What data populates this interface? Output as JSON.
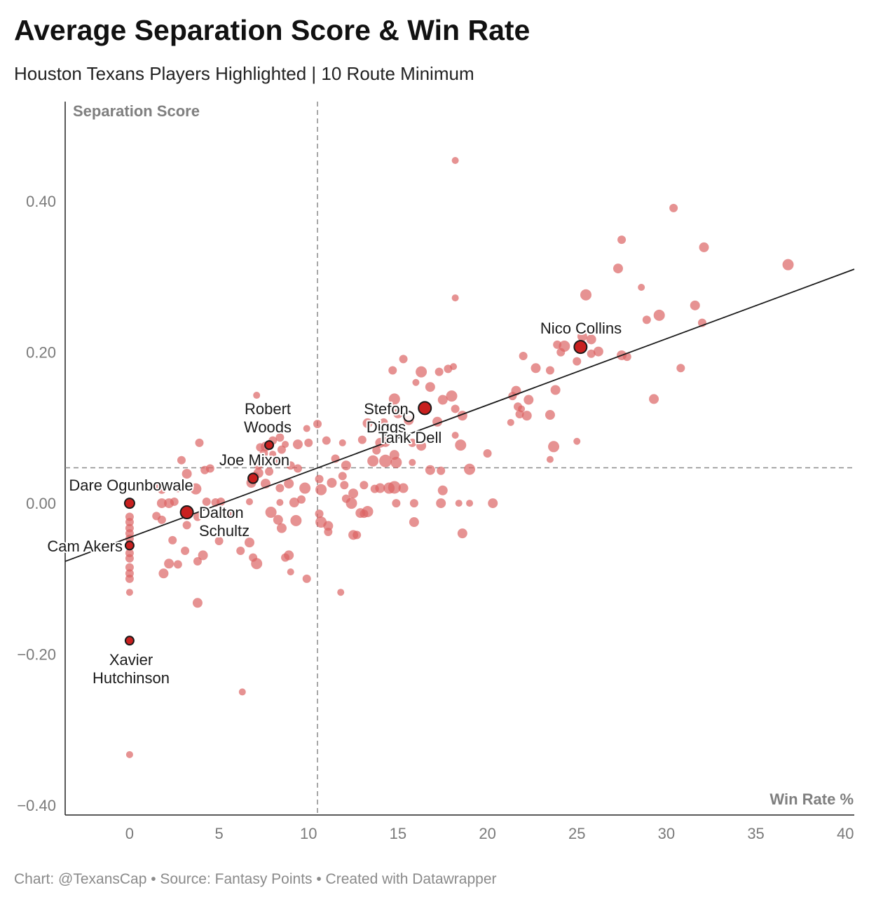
{
  "title": "Average Separation Score & Win Rate",
  "subtitle": "Houston Texans Players Highlighted | 10 Route Minimum",
  "footer": "Chart: @TexansCap • Source: Fantasy Points • Created with Datawrapper",
  "colors": {
    "point": "#dc6464",
    "highlight": "#c8201f",
    "highlight_stroke": "#1a1a1a",
    "trend": "#1a1a1a",
    "reference": "#8c8c8c"
  },
  "chart_data": {
    "type": "scatter",
    "xlabel": "Win Rate %",
    "ylabel": "Separation Score",
    "xlim": [
      -3.6,
      40.5
    ],
    "ylim": [
      -0.413,
      0.532
    ],
    "xticks": [
      {
        "v": 0,
        "label": "0"
      },
      {
        "v": 5,
        "label": "5"
      },
      {
        "v": 10,
        "label": "10"
      },
      {
        "v": 15,
        "label": "15"
      },
      {
        "v": 20,
        "label": "20"
      },
      {
        "v": 25,
        "label": "25"
      },
      {
        "v": 30,
        "label": "30"
      },
      {
        "v": 35,
        "label": "35"
      },
      {
        "v": 40,
        "label": "40"
      }
    ],
    "yticks": [
      {
        "v": 0.4,
        "label": "0.40"
      },
      {
        "v": 0.2,
        "label": "0.20"
      },
      {
        "v": 0.0,
        "label": "0.00"
      },
      {
        "v": -0.2,
        "label": "−0.20"
      },
      {
        "v": -0.4,
        "label": "−0.40"
      }
    ],
    "reference_lines": {
      "x": 10.5,
      "y": 0.047
    },
    "trendline": {
      "from": [
        -3.6,
        -0.077
      ],
      "to": [
        40.5,
        0.31
      ]
    },
    "highlighted": [
      {
        "name": "Nico Collins",
        "x": 25.2,
        "y": 0.207,
        "size": 9
      },
      {
        "name": "Stefon Diggs",
        "x": 15.6,
        "y": 0.115,
        "size": 7
      },
      {
        "name": "Tank Dell",
        "x": 16.5,
        "y": 0.126,
        "size": 9
      },
      {
        "name": "Robert Woods",
        "x": 7.8,
        "y": 0.077,
        "size": 6
      },
      {
        "name": "Joe Mixon",
        "x": 6.9,
        "y": 0.033,
        "size": 7
      },
      {
        "name": "Dare Ogunbowale",
        "x": 0.0,
        "y": 0.0,
        "size": 7
      },
      {
        "name": "Dalton Schultz",
        "x": 3.2,
        "y": -0.012,
        "size": 9
      },
      {
        "name": "Cam Akers",
        "x": 0.0,
        "y": -0.056,
        "size": 6
      },
      {
        "name": "Xavier Hutchinson",
        "x": 0.0,
        "y": -0.182,
        "size": 6
      }
    ],
    "points": [
      [
        18.2,
        0.454,
        5
      ],
      [
        30.4,
        0.391,
        6
      ],
      [
        27.5,
        0.349,
        6
      ],
      [
        32.1,
        0.339,
        7
      ],
      [
        36.8,
        0.316,
        8
      ],
      [
        27.3,
        0.311,
        7
      ],
      [
        28.6,
        0.286,
        5
      ],
      [
        25.5,
        0.276,
        8
      ],
      [
        18.2,
        0.272,
        5
      ],
      [
        31.6,
        0.262,
        7
      ],
      [
        29.6,
        0.249,
        8
      ],
      [
        28.9,
        0.243,
        6
      ],
      [
        32.0,
        0.239,
        6
      ],
      [
        25.3,
        0.221,
        7
      ],
      [
        25.8,
        0.217,
        7
      ],
      [
        23.9,
        0.21,
        6
      ],
      [
        24.3,
        0.208,
        8
      ],
      [
        25.8,
        0.198,
        6
      ],
      [
        26.2,
        0.201,
        7
      ],
      [
        24.1,
        0.2,
        6
      ],
      [
        27.5,
        0.196,
        7
      ],
      [
        27.8,
        0.194,
        6
      ],
      [
        25.0,
        0.188,
        6
      ],
      [
        22.0,
        0.195,
        6
      ],
      [
        22.7,
        0.179,
        7
      ],
      [
        23.5,
        0.176,
        6
      ],
      [
        30.8,
        0.179,
        6
      ],
      [
        17.8,
        0.178,
        6
      ],
      [
        18.1,
        0.181,
        5
      ],
      [
        17.3,
        0.174,
        6
      ],
      [
        16.3,
        0.174,
        8
      ],
      [
        14.7,
        0.176,
        6
      ],
      [
        15.3,
        0.191,
        6
      ],
      [
        21.6,
        0.149,
        7
      ],
      [
        23.8,
        0.15,
        7
      ],
      [
        21.4,
        0.142,
        6
      ],
      [
        22.3,
        0.137,
        7
      ],
      [
        29.3,
        0.138,
        7
      ],
      [
        18.0,
        0.142,
        8
      ],
      [
        16.8,
        0.154,
        7
      ],
      [
        17.5,
        0.137,
        7
      ],
      [
        14.8,
        0.138,
        8
      ],
      [
        16.0,
        0.16,
        5
      ],
      [
        21.7,
        0.128,
        6
      ],
      [
        21.9,
        0.125,
        5
      ],
      [
        21.8,
        0.118,
        6
      ],
      [
        22.2,
        0.116,
        7
      ],
      [
        23.5,
        0.117,
        7
      ],
      [
        18.6,
        0.116,
        7
      ],
      [
        17.2,
        0.108,
        7
      ],
      [
        18.2,
        0.125,
        6
      ],
      [
        15.0,
        0.119,
        7
      ],
      [
        15.6,
        0.11,
        7
      ],
      [
        14.2,
        0.107,
        6
      ],
      [
        13.3,
        0.106,
        7
      ],
      [
        21.3,
        0.107,
        5
      ],
      [
        18.2,
        0.09,
        5
      ],
      [
        23.7,
        0.075,
        8
      ],
      [
        25.0,
        0.082,
        5
      ],
      [
        18.5,
        0.077,
        8
      ],
      [
        20.0,
        0.066,
        6
      ],
      [
        16.3,
        0.076,
        7
      ],
      [
        15.8,
        0.08,
        6
      ],
      [
        14.0,
        0.08,
        7
      ],
      [
        13.0,
        0.084,
        6
      ],
      [
        14.3,
        0.081,
        7
      ],
      [
        14.8,
        0.064,
        7
      ],
      [
        14.9,
        0.054,
        8
      ],
      [
        14.3,
        0.056,
        9
      ],
      [
        13.6,
        0.056,
        8
      ],
      [
        13.8,
        0.07,
        6
      ],
      [
        15.8,
        0.054,
        5
      ],
      [
        16.8,
        0.044,
        7
      ],
      [
        17.4,
        0.043,
        6
      ],
      [
        19.0,
        0.045,
        8
      ],
      [
        23.5,
        0.058,
        5
      ],
      [
        17.5,
        0.017,
        7
      ],
      [
        14.5,
        0.02,
        8
      ],
      [
        14.0,
        0.02,
        7
      ],
      [
        13.7,
        0.019,
        6
      ],
      [
        14.8,
        0.021,
        9
      ],
      [
        15.3,
        0.02,
        7
      ],
      [
        13.1,
        0.024,
        6
      ],
      [
        12.5,
        0.013,
        7
      ],
      [
        11.5,
        0.059,
        6
      ],
      [
        12.1,
        0.05,
        7
      ],
      [
        11.9,
        0.036,
        6
      ],
      [
        12.0,
        0.024,
        6
      ],
      [
        11.3,
        0.027,
        7
      ],
      [
        10.6,
        0.032,
        6
      ],
      [
        10.7,
        0.018,
        8
      ],
      [
        9.8,
        0.02,
        8
      ],
      [
        9.6,
        0.005,
        6
      ],
      [
        12.1,
        0.006,
        6
      ],
      [
        12.4,
        0.0,
        8
      ],
      [
        10.0,
        0.08,
        6
      ],
      [
        10.5,
        0.105,
        6
      ],
      [
        9.9,
        0.099,
        5
      ],
      [
        11.0,
        0.083,
        6
      ],
      [
        11.9,
        0.08,
        5
      ],
      [
        9.4,
        0.078,
        7
      ],
      [
        8.4,
        0.087,
        6
      ],
      [
        8.0,
        0.083,
        6
      ],
      [
        7.6,
        0.075,
        7
      ],
      [
        7.3,
        0.074,
        6
      ],
      [
        8.5,
        0.071,
        6
      ],
      [
        8.7,
        0.078,
        5
      ],
      [
        7.5,
        0.066,
        6
      ],
      [
        8.2,
        0.055,
        7
      ],
      [
        7.2,
        0.05,
        6
      ],
      [
        7.8,
        0.042,
        6
      ],
      [
        7.2,
        0.04,
        7
      ],
      [
        7.0,
        0.036,
        6
      ],
      [
        6.8,
        0.027,
        7
      ],
      [
        7.6,
        0.026,
        7
      ],
      [
        8.9,
        0.026,
        7
      ],
      [
        8.4,
        0.02,
        6
      ],
      [
        9.0,
        0.05,
        6
      ],
      [
        9.4,
        0.046,
        6
      ],
      [
        8.0,
        0.065,
        5
      ],
      [
        3.9,
        0.08,
        6
      ],
      [
        7.1,
        0.143,
        5
      ],
      [
        2.9,
        0.057,
        6
      ],
      [
        4.2,
        0.044,
        6
      ],
      [
        4.5,
        0.046,
        6
      ],
      [
        3.2,
        0.039,
        7
      ],
      [
        2.7,
        0.021,
        7
      ],
      [
        3.7,
        0.019,
        8
      ],
      [
        1.8,
        0.018,
        6
      ],
      [
        1.6,
        0.021,
        6
      ],
      [
        2.2,
        0.0,
        7
      ],
      [
        1.8,
        0.0,
        7
      ],
      [
        2.5,
        0.002,
        6
      ],
      [
        4.3,
        0.002,
        6
      ],
      [
        4.8,
        0.001,
        6
      ],
      [
        5.1,
        0.002,
        6
      ],
      [
        6.7,
        0.002,
        5
      ],
      [
        8.4,
        0.001,
        5
      ],
      [
        9.2,
        0.001,
        7
      ],
      [
        7.9,
        -0.012,
        8
      ],
      [
        3.2,
        -0.029,
        6
      ],
      [
        3.8,
        -0.018,
        6
      ],
      [
        5.5,
        -0.014,
        6
      ],
      [
        1.5,
        -0.017,
        6
      ],
      [
        1.8,
        -0.022,
        6
      ],
      [
        8.3,
        -0.022,
        7
      ],
      [
        9.3,
        -0.023,
        8
      ],
      [
        8.5,
        -0.033,
        7
      ],
      [
        10.7,
        -0.025,
        8
      ],
      [
        11.1,
        -0.03,
        7
      ],
      [
        11.1,
        -0.038,
        6
      ],
      [
        12.5,
        -0.042,
        7
      ],
      [
        12.7,
        -0.042,
        6
      ],
      [
        13.3,
        -0.011,
        8
      ],
      [
        12.9,
        -0.013,
        7
      ],
      [
        10.6,
        -0.014,
        6
      ],
      [
        15.9,
        -0.025,
        7
      ],
      [
        18.6,
        -0.04,
        7
      ],
      [
        20.3,
        0.0,
        7
      ],
      [
        19.0,
        0.0,
        5
      ],
      [
        18.4,
        0.0,
        5
      ],
      [
        17.4,
        0.0,
        7
      ],
      [
        15.9,
        0.0,
        6
      ],
      [
        14.9,
        0.0,
        6
      ],
      [
        13.1,
        -0.014,
        6
      ],
      [
        6.7,
        -0.052,
        7
      ],
      [
        5.0,
        -0.05,
        6
      ],
      [
        2.4,
        -0.049,
        6
      ],
      [
        3.1,
        -0.063,
        6
      ],
      [
        2.2,
        -0.08,
        7
      ],
      [
        2.7,
        -0.081,
        6
      ],
      [
        3.8,
        -0.077,
        6
      ],
      [
        4.1,
        -0.069,
        7
      ],
      [
        1.9,
        -0.093,
        7
      ],
      [
        6.2,
        -0.063,
        6
      ],
      [
        6.9,
        -0.072,
        6
      ],
      [
        7.1,
        -0.08,
        8
      ],
      [
        8.9,
        -0.069,
        7
      ],
      [
        8.7,
        -0.072,
        6
      ],
      [
        9.0,
        -0.091,
        5
      ],
      [
        9.9,
        -0.1,
        6
      ],
      [
        3.8,
        -0.132,
        7
      ],
      [
        11.8,
        -0.118,
        5
      ],
      [
        6.3,
        -0.25,
        5
      ],
      [
        0,
        -0.018,
        6
      ],
      [
        0,
        -0.025,
        6
      ],
      [
        0,
        -0.033,
        6
      ],
      [
        0,
        -0.04,
        6
      ],
      [
        0,
        -0.047,
        6
      ],
      [
        0,
        -0.066,
        6
      ],
      [
        0,
        -0.073,
        6
      ],
      [
        0,
        -0.085,
        6
      ],
      [
        0,
        -0.093,
        6
      ],
      [
        0,
        -0.1,
        6
      ],
      [
        0,
        -0.118,
        5
      ],
      [
        0,
        -0.333,
        5
      ]
    ]
  }
}
